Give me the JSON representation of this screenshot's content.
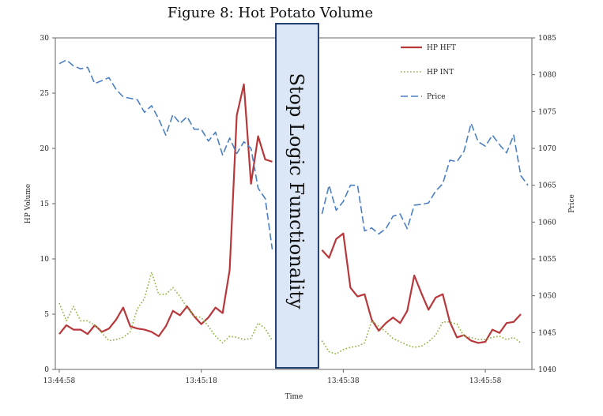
{
  "chart_data": {
    "type": "line",
    "title": "Figure 8: Hot Potato Volume",
    "xlabel": "Time",
    "ylabel_left": "HP Volume",
    "ylabel_right": "Price",
    "x_ticks": [
      "13:44:58",
      "13:45:18",
      "13:45:38",
      "13:45:58"
    ],
    "x_tick_positions": [
      0,
      20,
      40,
      60
    ],
    "xlim": [
      0,
      64
    ],
    "ylim_left": [
      0,
      30
    ],
    "y_ticks_left": [
      0,
      5,
      10,
      15,
      20,
      25,
      30
    ],
    "ylim_right": [
      1040,
      1085
    ],
    "y_ticks_right": [
      1040,
      1045,
      1050,
      1055,
      1060,
      1065,
      1070,
      1075,
      1080,
      1085
    ],
    "grid": false,
    "legend_position": "top-right",
    "annotation": {
      "text": "Stop Logic Functionality",
      "x_start": 30.5,
      "x_end": 36.5,
      "fill": "#dbe7f6",
      "border": "#1f3d70"
    },
    "series": [
      {
        "name": "HP HFT",
        "axis": "left",
        "color": "#b8373a",
        "style": "solid",
        "points": [
          [
            0,
            3.2
          ],
          [
            1,
            4.0
          ],
          [
            2,
            3.6
          ],
          [
            3,
            3.6
          ],
          [
            4,
            3.2
          ],
          [
            5,
            4.0
          ],
          [
            6,
            3.4
          ],
          [
            7,
            3.7
          ],
          [
            8,
            4.5
          ],
          [
            9,
            5.6
          ],
          [
            10,
            3.9
          ],
          [
            11,
            3.7
          ],
          [
            12,
            3.6
          ],
          [
            13,
            3.4
          ],
          [
            14,
            3.0
          ],
          [
            15,
            3.9
          ],
          [
            16,
            5.3
          ],
          [
            17,
            4.9
          ],
          [
            18,
            5.7
          ],
          [
            19,
            4.8
          ],
          [
            20,
            4.1
          ],
          [
            21,
            4.7
          ],
          [
            22,
            5.6
          ],
          [
            23,
            5.1
          ],
          [
            24,
            9.0
          ],
          [
            25,
            23.0
          ],
          [
            26,
            25.8
          ],
          [
            27,
            16.8
          ],
          [
            28,
            21.1
          ],
          [
            29,
            19.0
          ],
          [
            30,
            18.8
          ],
          [
            37,
            10.8
          ],
          [
            38,
            10.1
          ],
          [
            39,
            11.8
          ],
          [
            40,
            12.3
          ],
          [
            41,
            7.4
          ],
          [
            42,
            6.6
          ],
          [
            43,
            6.8
          ],
          [
            44,
            4.5
          ],
          [
            45,
            3.5
          ],
          [
            46,
            4.2
          ],
          [
            47,
            4.7
          ],
          [
            48,
            4.2
          ],
          [
            49,
            5.3
          ],
          [
            50,
            8.5
          ],
          [
            51,
            6.9
          ],
          [
            52,
            5.4
          ],
          [
            53,
            6.5
          ],
          [
            54,
            6.8
          ],
          [
            55,
            4.3
          ],
          [
            56,
            2.9
          ],
          [
            57,
            3.1
          ],
          [
            58,
            2.6
          ],
          [
            59,
            2.4
          ],
          [
            60,
            2.5
          ],
          [
            61,
            3.6
          ],
          [
            62,
            3.3
          ],
          [
            63,
            4.2
          ],
          [
            64,
            4.3
          ],
          [
            65,
            5.0
          ]
        ]
      },
      {
        "name": "HP INT",
        "axis": "left",
        "color": "#8db33e",
        "style": "dotted",
        "points": [
          [
            0,
            6.0
          ],
          [
            1,
            4.4
          ],
          [
            2,
            5.7
          ],
          [
            3,
            4.4
          ],
          [
            4,
            4.4
          ],
          [
            5,
            4.0
          ],
          [
            6,
            3.3
          ],
          [
            7,
            2.6
          ],
          [
            8,
            2.7
          ],
          [
            9,
            2.9
          ],
          [
            10,
            3.4
          ],
          [
            11,
            5.5
          ],
          [
            12,
            6.4
          ],
          [
            13,
            8.8
          ],
          [
            14,
            6.8
          ],
          [
            15,
            6.8
          ],
          [
            16,
            7.4
          ],
          [
            17,
            6.6
          ],
          [
            18,
            5.6
          ],
          [
            19,
            4.8
          ],
          [
            20,
            4.7
          ],
          [
            21,
            3.9
          ],
          [
            22,
            3.0
          ],
          [
            23,
            2.4
          ],
          [
            24,
            3.0
          ],
          [
            25,
            2.9
          ],
          [
            26,
            2.7
          ],
          [
            27,
            2.8
          ],
          [
            28,
            4.2
          ],
          [
            29,
            3.7
          ],
          [
            30,
            2.6
          ],
          [
            37,
            2.6
          ],
          [
            38,
            1.6
          ],
          [
            39,
            1.4
          ],
          [
            40,
            1.8
          ],
          [
            41,
            2.0
          ],
          [
            42,
            2.1
          ],
          [
            43,
            2.4
          ],
          [
            44,
            4.4
          ],
          [
            45,
            3.9
          ],
          [
            46,
            3.4
          ],
          [
            47,
            2.8
          ],
          [
            48,
            2.5
          ],
          [
            49,
            2.2
          ],
          [
            50,
            2.0
          ],
          [
            51,
            2.1
          ],
          [
            52,
            2.5
          ],
          [
            53,
            3.1
          ],
          [
            54,
            4.3
          ],
          [
            55,
            4.3
          ],
          [
            56,
            4.1
          ],
          [
            57,
            3.0
          ],
          [
            58,
            2.9
          ],
          [
            59,
            2.7
          ],
          [
            60,
            2.7
          ],
          [
            61,
            2.9
          ],
          [
            62,
            3.0
          ],
          [
            63,
            2.7
          ],
          [
            64,
            2.9
          ],
          [
            65,
            2.4
          ]
        ]
      },
      {
        "name": "Price",
        "axis": "right",
        "color": "#4a7ec2",
        "style": "dashed",
        "points": [
          [
            0,
            1081.5
          ],
          [
            1,
            1082.0
          ],
          [
            2,
            1081.2
          ],
          [
            3,
            1080.8
          ],
          [
            4,
            1081.0
          ],
          [
            5,
            1078.8
          ],
          [
            6,
            1079.2
          ],
          [
            7,
            1079.6
          ],
          [
            8,
            1078.0
          ],
          [
            9,
            1077.0
          ],
          [
            10,
            1076.8
          ],
          [
            11,
            1076.6
          ],
          [
            12,
            1074.9
          ],
          [
            13,
            1075.8
          ],
          [
            14,
            1074.0
          ],
          [
            15,
            1071.8
          ],
          [
            16,
            1074.6
          ],
          [
            17,
            1073.4
          ],
          [
            18,
            1074.3
          ],
          [
            19,
            1072.6
          ],
          [
            20,
            1072.6
          ],
          [
            21,
            1071.0
          ],
          [
            22,
            1072.2
          ],
          [
            23,
            1069.1
          ],
          [
            24,
            1071.4
          ],
          [
            25,
            1069.3
          ],
          [
            26,
            1070.9
          ],
          [
            27,
            1070.0
          ],
          [
            28,
            1064.6
          ],
          [
            29,
            1063.2
          ],
          [
            30,
            1056.3
          ],
          [
            37,
            1061.1
          ],
          [
            38,
            1065.0
          ],
          [
            39,
            1061.6
          ],
          [
            40,
            1062.8
          ],
          [
            41,
            1065.0
          ],
          [
            42,
            1065.0
          ],
          [
            43,
            1058.8
          ],
          [
            44,
            1059.2
          ],
          [
            45,
            1058.4
          ],
          [
            46,
            1059.1
          ],
          [
            47,
            1060.8
          ],
          [
            48,
            1061.1
          ],
          [
            49,
            1059.1
          ],
          [
            50,
            1062.3
          ],
          [
            51,
            1062.4
          ],
          [
            52,
            1062.6
          ],
          [
            53,
            1064.2
          ],
          [
            54,
            1065.2
          ],
          [
            55,
            1068.4
          ],
          [
            56,
            1068.2
          ],
          [
            57,
            1069.6
          ],
          [
            58,
            1073.4
          ],
          [
            59,
            1070.9
          ],
          [
            60,
            1070.3
          ],
          [
            61,
            1071.8
          ],
          [
            62,
            1070.5
          ],
          [
            63,
            1069.4
          ],
          [
            64,
            1071.8
          ],
          [
            65,
            1066.3
          ],
          [
            66,
            1065.0
          ]
        ]
      }
    ]
  }
}
